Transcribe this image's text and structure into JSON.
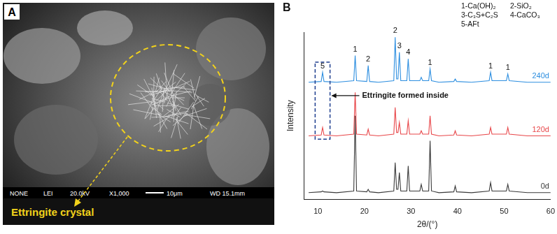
{
  "panel_a": {
    "label": "A",
    "annotation": "Ettringite crystal",
    "info_bar": [
      "NONE",
      "LEI",
      "20.0kV",
      "X1,000",
      "10μm",
      "WD 15.1mm"
    ]
  },
  "chart_data": {
    "type": "line",
    "panel_label": "B",
    "x_label": "2θ/(°)",
    "y_label": "Intensity",
    "x": [
      8,
      10.7,
      11,
      11.3,
      14,
      17.7,
      18,
      18.3,
      20.5,
      20.8,
      21.1,
      23,
      26.3,
      26.6,
      26.9,
      27.2,
      27.5,
      27.8,
      29.1,
      29.4,
      29.7,
      31.9,
      32.2,
      32.5,
      33.8,
      34.1,
      34.4,
      36,
      39.2,
      39.5,
      39.8,
      43,
      46.8,
      47.1,
      47.4,
      50.5,
      50.8,
      51.1,
      55,
      60
    ],
    "series": [
      {
        "name": "240d",
        "color": "#2e8fe0",
        "values": [
          70,
          70.5,
          76,
          70.5,
          70,
          71,
          86,
          71,
          70.5,
          80,
          70.5,
          70,
          71,
          97,
          72,
          72,
          88,
          71,
          71,
          84,
          71,
          71,
          73,
          71,
          71,
          78,
          71,
          70,
          70.5,
          72,
          70.5,
          70,
          71,
          76,
          71,
          71,
          75,
          71,
          70,
          70
        ]
      },
      {
        "name": "120d",
        "color": "#e8474a",
        "values": [
          38,
          38.5,
          43,
          38.5,
          38,
          39,
          64,
          39,
          38.5,
          42,
          38.5,
          38,
          39,
          55,
          40,
          40,
          46,
          39,
          39,
          47,
          39,
          39,
          41,
          39,
          39,
          50,
          39,
          38,
          38.5,
          41,
          38.5,
          38,
          39,
          43,
          39,
          39,
          43,
          39,
          38,
          38
        ]
      },
      {
        "name": "0d",
        "color": "#3a3a3a",
        "values": [
          4,
          4.5,
          5,
          4.5,
          4,
          5,
          50,
          5,
          4.5,
          6,
          4.5,
          4,
          5,
          22,
          6,
          6,
          16,
          5,
          5,
          20,
          5,
          5,
          9,
          5,
          5,
          35,
          5,
          4,
          4.5,
          8,
          4.5,
          4,
          5,
          10,
          5,
          5,
          9,
          5,
          4,
          4
        ]
      }
    ],
    "xlim": [
      7,
      60
    ],
    "xticks": [
      10,
      20,
      30,
      40,
      50,
      60
    ],
    "ylim": [
      0,
      100
    ],
    "tick_labels": "x",
    "grid": false,
    "marker": "none",
    "line_style": "solid",
    "peak_key": [
      "1-Ca(OH)₂",
      "2-SiO₂",
      "3-C₃S+C₂S",
      "4-CaCO₃",
      "5-AFt"
    ],
    "peak_labels": [
      {
        "text": "5",
        "x": 11,
        "y": 77
      },
      {
        "text": "1",
        "x": 18,
        "y": 87
      },
      {
        "text": "2",
        "x": 20.8,
        "y": 81
      },
      {
        "text": "2",
        "x": 26.6,
        "y": 98
      },
      {
        "text": "3",
        "x": 27.5,
        "y": 89
      },
      {
        "text": "4",
        "x": 29.4,
        "y": 85
      },
      {
        "text": "1",
        "x": 34.1,
        "y": 79
      },
      {
        "text": "1",
        "x": 47.1,
        "y": 77
      },
      {
        "text": "1",
        "x": 50.8,
        "y": 76
      }
    ],
    "highlight": {
      "x": [
        9.4,
        12.6
      ],
      "y": [
        36,
        82
      ]
    },
    "annotation": {
      "text": "Ettringite formed inside",
      "x": 19.5,
      "y": 62
    }
  }
}
